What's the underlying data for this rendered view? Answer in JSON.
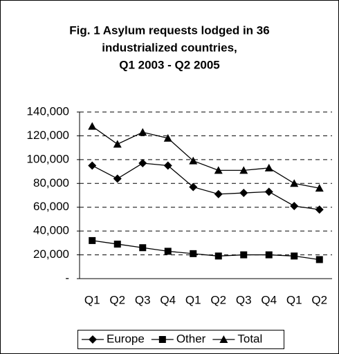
{
  "chart_data": {
    "type": "line",
    "title": [
      "Fig. 1  Asylum requests lodged in 36",
      "industrialized countries,",
      "Q1 2003 - Q2 2005"
    ],
    "categories": [
      "Q1",
      "Q2",
      "Q3",
      "Q4",
      "Q1",
      "Q2",
      "Q3",
      "Q4",
      "Q1",
      "Q2"
    ],
    "series": [
      {
        "name": "Europe",
        "color": "#000000",
        "marker": "diamond",
        "values": [
          95000,
          84000,
          97000,
          95000,
          77000,
          71000,
          72000,
          73000,
          61000,
          58000
        ]
      },
      {
        "name": "Other",
        "color": "#000000",
        "marker": "square",
        "values": [
          32000,
          29000,
          26000,
          23000,
          21000,
          19000,
          20000,
          20000,
          19000,
          16000
        ]
      },
      {
        "name": "Total",
        "color": "#000000",
        "marker": "triangle",
        "values": [
          128000,
          113000,
          123000,
          118000,
          99000,
          91000,
          91000,
          93000,
          80000,
          76000
        ]
      }
    ],
    "ylim": [
      0,
      140000
    ],
    "yticks": [
      {
        "value": 0,
        "label": "-"
      },
      {
        "value": 20000,
        "label": "20,000"
      },
      {
        "value": 40000,
        "label": "40,000"
      },
      {
        "value": 60000,
        "label": "60,000"
      },
      {
        "value": 80000,
        "label": "80,000"
      },
      {
        "value": 100000,
        "label": "100,000"
      },
      {
        "value": 120000,
        "label": "120,000"
      },
      {
        "value": 140000,
        "label": "140,000"
      }
    ],
    "grid": true,
    "legend": "bottom"
  }
}
